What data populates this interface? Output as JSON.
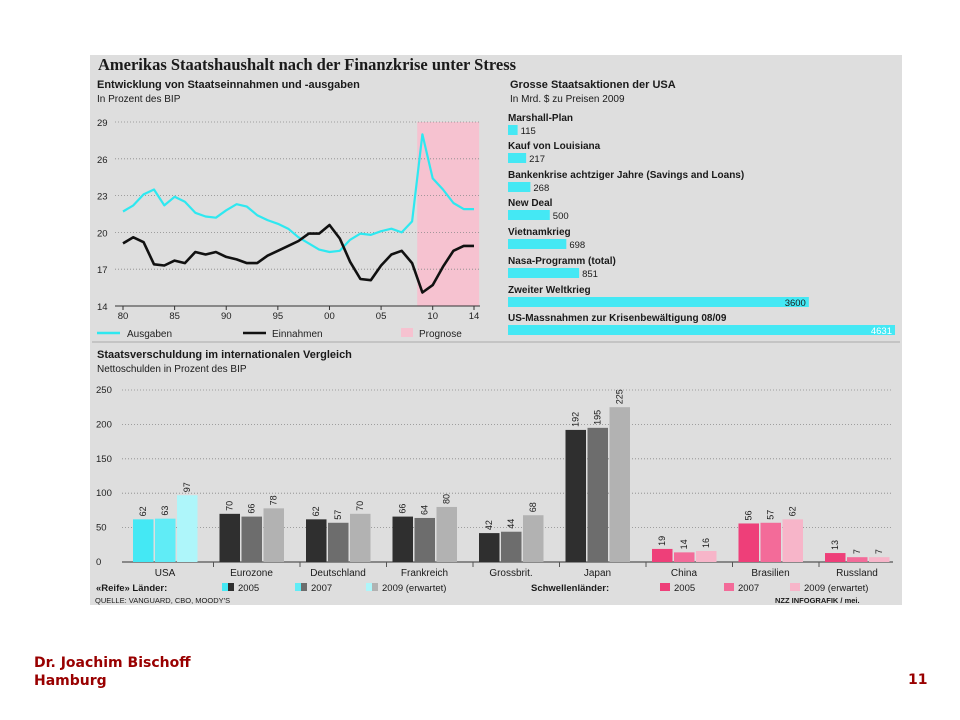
{
  "title": "Amerikas Staatshaushalt nach der Finanzkrise unter Stress",
  "footer": {
    "author_line1": "Dr. Joachim Bischoff",
    "author_line2": "Hamburg",
    "page_number": "11"
  },
  "source": "QUELLE: VANGUARD, CBO, MOODY'S",
  "credit": "NZZ INFOGRAFIK / mei.",
  "colors": {
    "panel": "#dedede",
    "ausgaben": "#2ee8f0",
    "einnahmen": "#111111",
    "prognose": "#f6c2d0",
    "bar_ref": "#44e8f4",
    "footer": "#990000"
  },
  "chart_data": [
    {
      "type": "line",
      "title": "Entwicklung von Staatseinnahmen und -ausgaben",
      "subtitle": "In Prozent des BIP",
      "x_tick_labels": [
        "80",
        "85",
        "90",
        "95",
        "00",
        "05",
        "10",
        "14"
      ],
      "ylim": [
        14,
        29
      ],
      "y_ticks": [
        29,
        26,
        23,
        20,
        17,
        14
      ],
      "forecast_range": [
        2008.5,
        2014.5
      ],
      "series": [
        {
          "name": "Ausgaben",
          "x": [
            1980,
            1981,
            1982,
            1983,
            1984,
            1985,
            1986,
            1987,
            1988,
            1989,
            1990,
            1991,
            1992,
            1993,
            1994,
            1995,
            1996,
            1997,
            1998,
            1999,
            2000,
            2001,
            2002,
            2003,
            2004,
            2005,
            2006,
            2007,
            2008,
            2009,
            2010,
            2011,
            2012,
            2013,
            2014
          ],
          "values": [
            21.7,
            22.2,
            23.1,
            23.5,
            22.2,
            22.9,
            22.5,
            21.6,
            21.3,
            21.2,
            21.8,
            22.3,
            22.1,
            21.4,
            21.0,
            20.7,
            20.3,
            19.6,
            19.1,
            18.6,
            18.4,
            18.5,
            19.4,
            19.9,
            19.8,
            20.1,
            20.3,
            20.0,
            20.9,
            28.0,
            24.4,
            23.5,
            22.4,
            21.9,
            21.9
          ]
        },
        {
          "name": "Einnahmen",
          "x": [
            1980,
            1981,
            1982,
            1983,
            1984,
            1985,
            1986,
            1987,
            1988,
            1989,
            1990,
            1991,
            1992,
            1993,
            1994,
            1995,
            1996,
            1997,
            1998,
            1999,
            2000,
            2001,
            2002,
            2003,
            2004,
            2005,
            2006,
            2007,
            2008,
            2009,
            2010,
            2011,
            2012,
            2013,
            2014
          ],
          "values": [
            19.1,
            19.6,
            19.2,
            17.4,
            17.3,
            17.7,
            17.5,
            18.4,
            18.2,
            18.4,
            18.0,
            17.8,
            17.5,
            17.5,
            18.1,
            18.5,
            18.9,
            19.3,
            19.9,
            19.9,
            20.6,
            19.5,
            17.6,
            16.2,
            16.1,
            17.3,
            18.2,
            18.5,
            17.5,
            15.1,
            15.7,
            17.2,
            18.5,
            18.9,
            18.9
          ]
        }
      ],
      "legend": [
        "Ausgaben",
        "Einnahmen",
        "Prognose"
      ]
    },
    {
      "type": "bar",
      "title": "Grosse Staatsaktionen der USA",
      "subtitle": "In Mrd. $ zu Preisen 2009",
      "categories": [
        "Marshall-Plan",
        "Kauf von Louisiana",
        "Bankenkrise achtziger Jahre (Savings and Loans)",
        "New Deal",
        "Vietnamkrieg",
        "Nasa-Programm (total)",
        "Zweiter Weltkrieg",
        "US-Massnahmen zur Krisenbewältigung 08/09"
      ],
      "values": [
        115,
        217,
        268,
        500,
        698,
        851,
        3600,
        4631
      ],
      "labels": [
        "115",
        "217",
        "268",
        "500",
        "698",
        "851",
        "3600",
        "4631"
      ]
    },
    {
      "type": "bar",
      "title": "Staatsverschuldung im internationalen Vergleich",
      "subtitle": "Nettoschulden in Prozent des BIP",
      "categories": [
        "USA",
        "Eurozone",
        "Deutschland",
        "Frankreich",
        "Grossbrit.",
        "Japan",
        "China",
        "Brasilien",
        "Russland"
      ],
      "ylim": [
        0,
        250
      ],
      "y_ticks": [
        0,
        50,
        100,
        150,
        200,
        250
      ],
      "series": [
        {
          "name": "2005",
          "values": [
            62,
            70,
            62,
            66,
            42,
            192,
            19,
            56,
            13
          ]
        },
        {
          "name": "2007",
          "values": [
            63,
            66,
            57,
            64,
            44,
            195,
            14,
            57,
            7
          ]
        },
        {
          "name": "2009 (erwartet)",
          "values": [
            97,
            78,
            70,
            80,
            68,
            225,
            16,
            62,
            7
          ]
        }
      ],
      "groups": [
        {
          "label": "«Reife» Länder:",
          "categories": [
            "USA",
            "Eurozone",
            "Deutschland",
            "Frankreich",
            "Grossbrit.",
            "Japan"
          ]
        },
        {
          "label": "Schwellenländer:",
          "categories": [
            "China",
            "Brasilien",
            "Russland"
          ]
        }
      ]
    }
  ]
}
